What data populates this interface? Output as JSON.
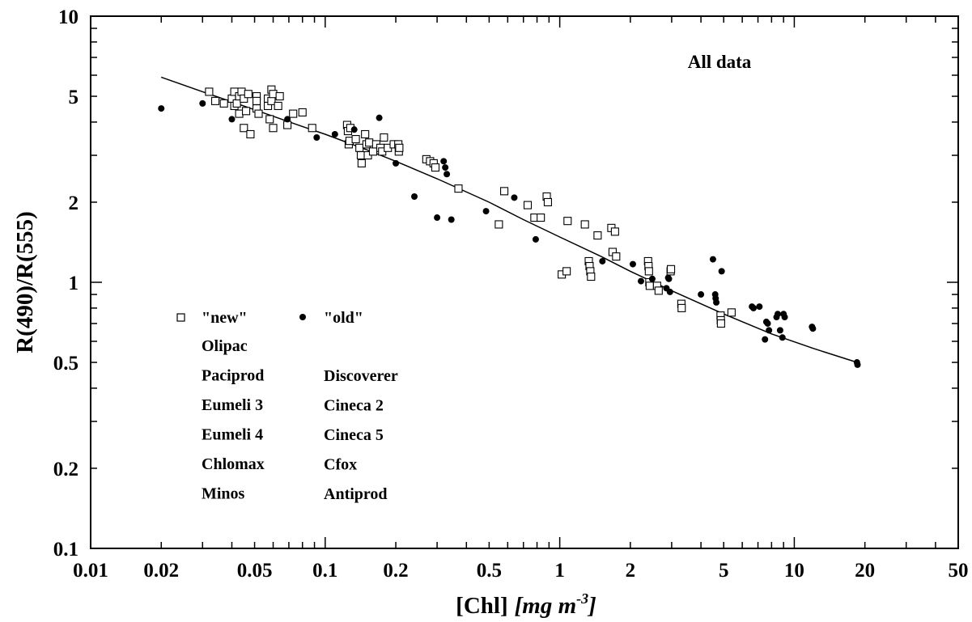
{
  "chart_data": {
    "type": "scatter",
    "title": "",
    "annotation": "All data",
    "xlabel": "[Chl]",
    "xlabel_units": "[mg m",
    "xlabel_units_exp": "-3",
    "xlabel_units_close": "]",
    "ylabel": "R(490)/R(555)",
    "xscale": "log",
    "yscale": "log",
    "xlim": [
      0.01,
      50
    ],
    "ylim": [
      0.1,
      10
    ],
    "grid": false,
    "legend_position": "lower-left",
    "x_ticks": [
      {
        "value": 0.01,
        "label": "0.01"
      },
      {
        "value": 0.02,
        "label": "0.02"
      },
      {
        "value": 0.05,
        "label": "0.05"
      },
      {
        "value": 0.1,
        "label": "0.1"
      },
      {
        "value": 0.2,
        "label": "0.2"
      },
      {
        "value": 0.5,
        "label": "0.5"
      },
      {
        "value": 1,
        "label": "1"
      },
      {
        "value": 2,
        "label": "2"
      },
      {
        "value": 5,
        "label": "5"
      },
      {
        "value": 10,
        "label": "10"
      },
      {
        "value": 20,
        "label": "20"
      },
      {
        "value": 50,
        "label": "50"
      }
    ],
    "y_ticks": [
      {
        "value": 0.1,
        "label": "0.1"
      },
      {
        "value": 0.2,
        "label": "0.2"
      },
      {
        "value": 0.5,
        "label": "0.5"
      },
      {
        "value": 1,
        "label": "1"
      },
      {
        "value": 2,
        "label": "2"
      },
      {
        "value": 5,
        "label": "5"
      },
      {
        "value": 10,
        "label": "10"
      }
    ],
    "legend": {
      "new_label": "\"new\"",
      "old_label": "\"old\"",
      "new_cruises": [
        "Olipac",
        "Paciprod",
        "Eumeli 3",
        "Eumeli 4",
        "Chlomax",
        "Minos"
      ],
      "old_cruises": [
        "Discoverer",
        "Cineca 2",
        "Cineca 5",
        "Cfox",
        "Antiprod"
      ]
    },
    "series": [
      {
        "name": "\"new\"",
        "marker": "open-square",
        "points": [
          [
            0.032,
            5.2
          ],
          [
            0.034,
            4.8
          ],
          [
            0.037,
            4.7
          ],
          [
            0.04,
            4.9
          ],
          [
            0.041,
            5.2
          ],
          [
            0.041,
            4.6
          ],
          [
            0.042,
            4.7
          ],
          [
            0.043,
            5.0
          ],
          [
            0.043,
            4.3
          ],
          [
            0.044,
            5.2
          ],
          [
            0.045,
            4.9
          ],
          [
            0.045,
            3.8
          ],
          [
            0.046,
            4.4
          ],
          [
            0.047,
            5.1
          ],
          [
            0.048,
            3.6
          ],
          [
            0.051,
            5.0
          ],
          [
            0.051,
            4.8
          ],
          [
            0.051,
            4.5
          ],
          [
            0.052,
            4.3
          ],
          [
            0.057,
            4.6
          ],
          [
            0.057,
            4.9
          ],
          [
            0.058,
            4.1
          ],
          [
            0.059,
            5.3
          ],
          [
            0.059,
            4.8
          ],
          [
            0.06,
            3.8
          ],
          [
            0.06,
            5.1
          ],
          [
            0.063,
            4.6
          ],
          [
            0.064,
            5.0
          ],
          [
            0.069,
            3.9
          ],
          [
            0.073,
            4.3
          ],
          [
            0.08,
            4.35
          ],
          [
            0.088,
            3.8
          ],
          [
            0.124,
            3.9
          ],
          [
            0.125,
            3.7
          ],
          [
            0.126,
            3.3
          ],
          [
            0.127,
            3.4
          ],
          [
            0.128,
            3.8
          ],
          [
            0.135,
            3.45
          ],
          [
            0.14,
            3.2
          ],
          [
            0.142,
            3.0
          ],
          [
            0.143,
            2.8
          ],
          [
            0.148,
            3.6
          ],
          [
            0.15,
            3.3
          ],
          [
            0.152,
            3.0
          ],
          [
            0.154,
            3.35
          ],
          [
            0.16,
            3.1
          ],
          [
            0.165,
            3.3
          ],
          [
            0.172,
            3.2
          ],
          [
            0.175,
            3.1
          ],
          [
            0.178,
            3.5
          ],
          [
            0.185,
            3.2
          ],
          [
            0.196,
            3.3
          ],
          [
            0.205,
            3.3
          ],
          [
            0.206,
            3.1
          ],
          [
            0.207,
            3.2
          ],
          [
            0.27,
            2.9
          ],
          [
            0.28,
            2.85
          ],
          [
            0.29,
            2.8
          ],
          [
            0.295,
            2.7
          ],
          [
            0.37,
            2.25
          ],
          [
            0.55,
            1.65
          ],
          [
            0.58,
            2.2
          ],
          [
            0.73,
            1.95
          ],
          [
            0.78,
            1.75
          ],
          [
            0.83,
            1.75
          ],
          [
            0.88,
            2.1
          ],
          [
            0.89,
            2.0
          ],
          [
            1.02,
            1.07
          ],
          [
            1.07,
            1.1
          ],
          [
            1.08,
            1.7
          ],
          [
            1.28,
            1.65
          ],
          [
            1.33,
            1.2
          ],
          [
            1.34,
            1.15
          ],
          [
            1.35,
            1.1
          ],
          [
            1.36,
            1.05
          ],
          [
            1.45,
            1.5
          ],
          [
            1.66,
            1.6
          ],
          [
            1.68,
            1.3
          ],
          [
            1.72,
            1.55
          ],
          [
            1.74,
            1.25
          ],
          [
            2.38,
            1.2
          ],
          [
            2.39,
            1.15
          ],
          [
            2.4,
            1.1
          ],
          [
            2.41,
            1.0
          ],
          [
            2.42,
            0.97
          ],
          [
            2.6,
            0.97
          ],
          [
            2.64,
            0.93
          ],
          [
            2.97,
            1.1
          ],
          [
            2.98,
            1.12
          ],
          [
            3.3,
            0.83
          ],
          [
            3.31,
            0.8
          ],
          [
            4.85,
            0.75
          ],
          [
            4.86,
            0.72
          ],
          [
            4.87,
            0.7
          ],
          [
            5.4,
            0.77
          ]
        ]
      },
      {
        "name": "\"old\"",
        "marker": "filled-circle",
        "points": [
          [
            0.02,
            4.5
          ],
          [
            0.03,
            4.7
          ],
          [
            0.04,
            4.1
          ],
          [
            0.069,
            4.1
          ],
          [
            0.092,
            3.5
          ],
          [
            0.11,
            3.6
          ],
          [
            0.133,
            3.75
          ],
          [
            0.17,
            4.15
          ],
          [
            0.2,
            2.8
          ],
          [
            0.24,
            2.1
          ],
          [
            0.3,
            1.75
          ],
          [
            0.32,
            2.85
          ],
          [
            0.325,
            2.7
          ],
          [
            0.33,
            2.55
          ],
          [
            0.345,
            1.72
          ],
          [
            0.485,
            1.85
          ],
          [
            0.64,
            2.08
          ],
          [
            0.79,
            1.45
          ],
          [
            1.52,
            1.2
          ],
          [
            2.05,
            1.17
          ],
          [
            2.22,
            1.01
          ],
          [
            2.48,
            1.03
          ],
          [
            2.85,
            0.95
          ],
          [
            2.9,
            1.04
          ],
          [
            2.92,
            1.03
          ],
          [
            2.95,
            0.92
          ],
          [
            4.0,
            0.9
          ],
          [
            4.5,
            1.22
          ],
          [
            4.6,
            0.9
          ],
          [
            4.62,
            0.87
          ],
          [
            4.65,
            0.84
          ],
          [
            4.9,
            1.1
          ],
          [
            6.6,
            0.81
          ],
          [
            6.7,
            0.8
          ],
          [
            7.1,
            0.81
          ],
          [
            7.5,
            0.61
          ],
          [
            7.6,
            0.71
          ],
          [
            7.7,
            0.7
          ],
          [
            7.8,
            0.66
          ],
          [
            8.4,
            0.74
          ],
          [
            8.5,
            0.76
          ],
          [
            8.7,
            0.66
          ],
          [
            8.9,
            0.62
          ],
          [
            9.0,
            0.76
          ],
          [
            9.1,
            0.74
          ],
          [
            11.9,
            0.68
          ],
          [
            12.0,
            0.67
          ],
          [
            18.5,
            0.5
          ],
          [
            18.6,
            0.49
          ]
        ]
      },
      {
        "name": "",
        "marker": "line",
        "points": [
          [
            0.02,
            5.9
          ],
          [
            0.03,
            5.2
          ],
          [
            0.05,
            4.45
          ],
          [
            0.08,
            3.85
          ],
          [
            0.1,
            3.6
          ],
          [
            0.15,
            3.15
          ],
          [
            0.2,
            2.85
          ],
          [
            0.3,
            2.45
          ],
          [
            0.5,
            2.0
          ],
          [
            0.7,
            1.72
          ],
          [
            1.0,
            1.48
          ],
          [
            1.5,
            1.25
          ],
          [
            2.0,
            1.1
          ],
          [
            3.0,
            0.93
          ],
          [
            5.0,
            0.76
          ],
          [
            8.0,
            0.64
          ],
          [
            12.0,
            0.565
          ],
          [
            18.5,
            0.5
          ]
        ]
      }
    ]
  }
}
